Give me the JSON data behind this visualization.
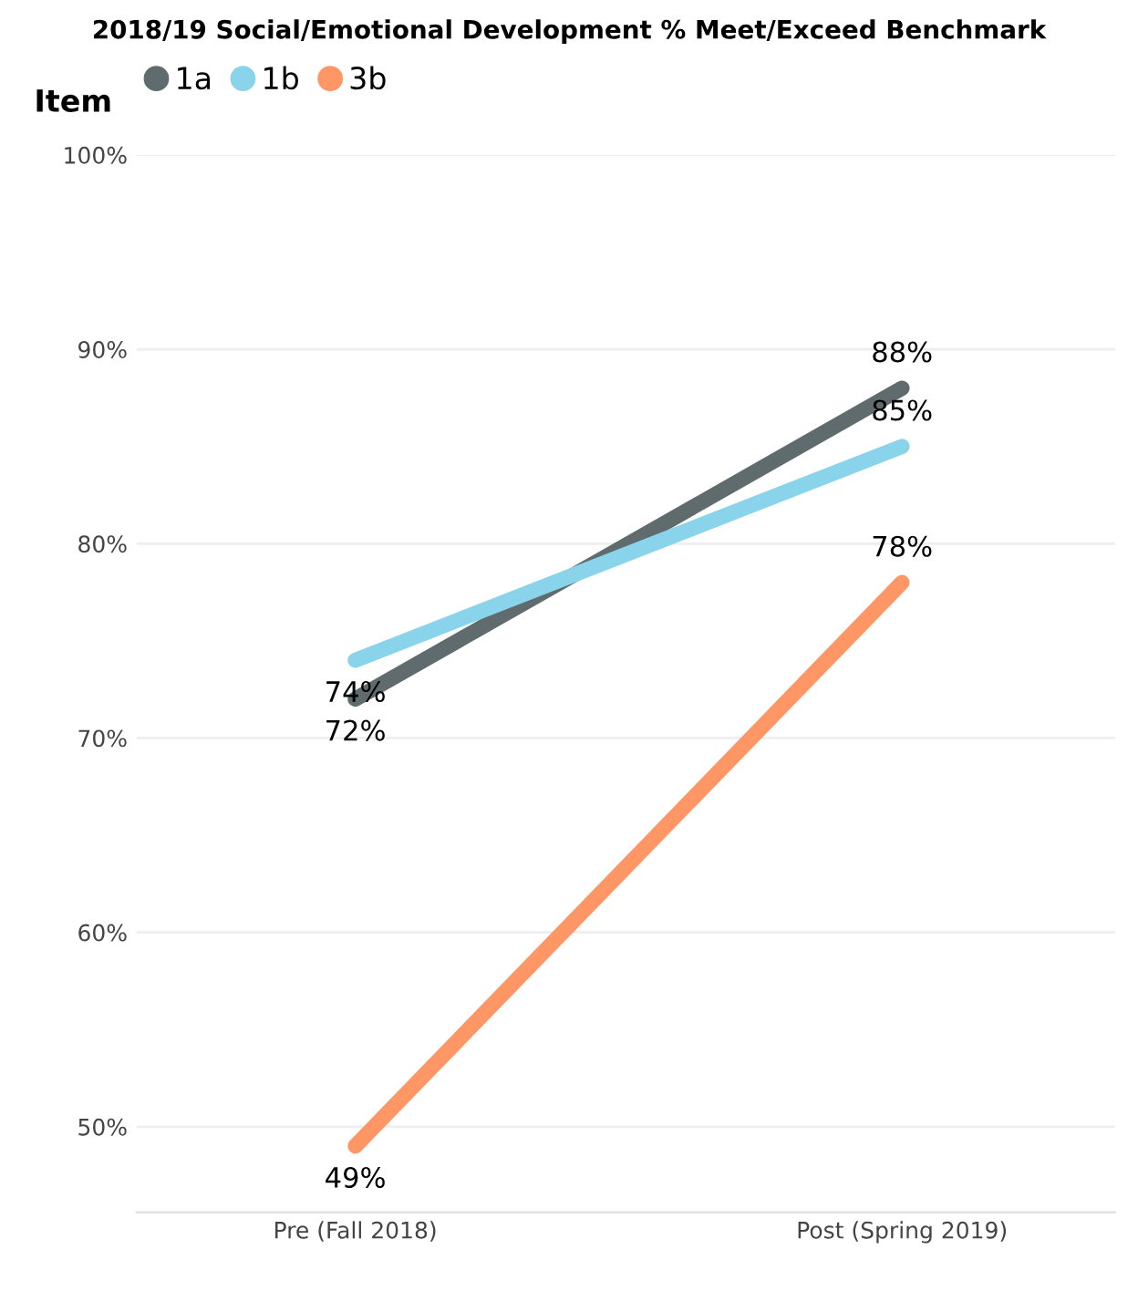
{
  "chart_data": {
    "type": "line",
    "title": "2018/19 Social/Emotional Development % Meet/Exceed Benchmark",
    "legend_title": "Item",
    "legend": "top left",
    "grid": "y",
    "categories": [
      "Pre (Fall 2018)",
      "Post (Spring 2019)"
    ],
    "series": [
      {
        "name": "1a",
        "color": "#5f6b6d",
        "values": [
          72,
          88
        ],
        "value_labels": [
          "72%",
          "88%"
        ]
      },
      {
        "name": "1b",
        "color": "#8ad4eb",
        "values": [
          74,
          85
        ],
        "value_labels": [
          "74%",
          "85%"
        ]
      },
      {
        "name": "3b",
        "color": "#fe9666",
        "values": [
          49,
          78
        ],
        "value_labels": [
          "49%",
          "78%"
        ]
      }
    ],
    "ylim": [
      45.6,
      100
    ],
    "yticks": [
      {
        "value": 50,
        "label": "50%"
      },
      {
        "value": 60,
        "label": "60%"
      },
      {
        "value": 70,
        "label": "70%"
      },
      {
        "value": 80,
        "label": "80%"
      },
      {
        "value": 90,
        "label": "90%"
      },
      {
        "value": 100,
        "label": "100%"
      }
    ]
  }
}
